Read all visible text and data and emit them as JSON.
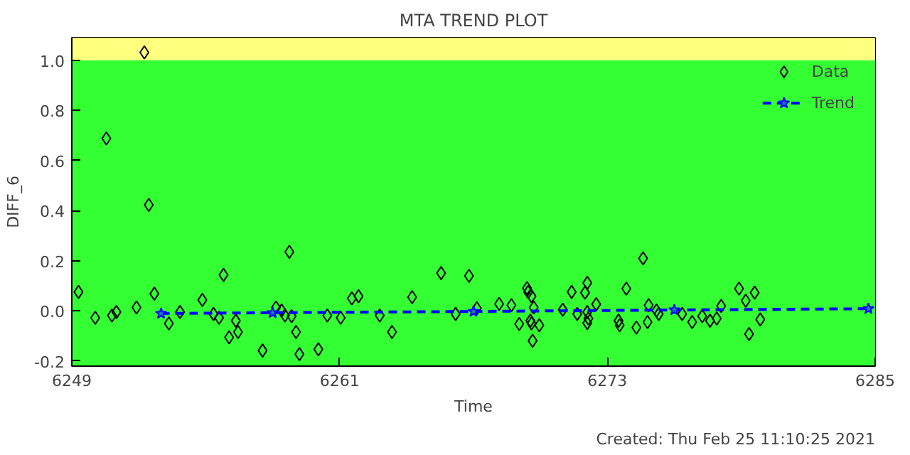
{
  "chart_data": {
    "type": "scatter",
    "title": "MTA TREND PLOT",
    "xlabel": "Time",
    "ylabel": "DIFF_6",
    "annotations": [
      "Created: Thu Feb 25 11:10:25 2021"
    ],
    "xlim": [
      6249,
      6285
    ],
    "xticks": [
      6249,
      6261,
      6273,
      6285
    ],
    "ylim": [
      -0.22,
      1.09
    ],
    "yticks": [
      {
        "value": -0.2,
        "label": "-0.2"
      },
      {
        "value": 0,
        "label": "0.0"
      },
      {
        "value": 0.2,
        "label": "0.2"
      },
      {
        "value": 0.4,
        "label": "0.4"
      },
      {
        "value": 0.6,
        "label": "0.6"
      },
      {
        "value": 0.8,
        "label": "0.8"
      },
      {
        "value": 1,
        "label": "1.0"
      }
    ],
    "grid": false,
    "legend": "top right",
    "bands": [
      {
        "axis": "y",
        "from": -0.22,
        "to": 1.0,
        "color": "#33ff33"
      },
      {
        "axis": "y",
        "from": 1.0,
        "to": 1.09,
        "color": "#ffff80"
      }
    ],
    "series": [
      {
        "name": "Data",
        "marker": "diamond",
        "color": "#000000",
        "x": [
          6249.3,
          6250.05,
          6250.55,
          6250.8,
          6251.0,
          6251.9,
          6252.25,
          6252.45,
          6252.7,
          6253.35,
          6253.85,
          6254.85,
          6255.35,
          6255.6,
          6255.8,
          6256.05,
          6256.35,
          6256.45,
          6257.55,
          6258.15,
          6258.4,
          6258.55,
          6258.85,
          6258.75,
          6259.05,
          6259.2,
          6260.05,
          6260.45,
          6261.05,
          6261.55,
          6261.85,
          6262.8,
          6263.35,
          6264.25,
          6265.55,
          6266.2,
          6266.8,
          6267.15,
          6268.15,
          6268.7,
          6269.05,
          6269.4,
          6269.45,
          6269.6,
          6269.7,
          6269.55,
          6269.6,
          6269.95,
          6269.65,
          6271.0,
          6271.4,
          6272.0,
          6272.1,
          6271.65,
          6272.1,
          6272.15,
          6272.1,
          6272.5,
          6273.5,
          6273.55,
          6273.85,
          6274.3,
          6274.6,
          6274.85,
          6274.8,
          6275.2,
          6275.3,
          6276.35,
          6276.8,
          6277.25,
          6277.6,
          6277.9,
          6278.1,
          6278.9,
          6279.2,
          6279.6,
          6279.85,
          6279.35
        ],
        "values": [
          0.076,
          -0.027,
          0.688,
          -0.018,
          -0.004,
          0.014,
          1.031,
          0.423,
          0.069,
          -0.05,
          -0.004,
          0.044,
          -0.012,
          -0.027,
          0.144,
          -0.105,
          -0.039,
          -0.084,
          -0.158,
          0.014,
          0.002,
          -0.018,
          -0.021,
          0.236,
          -0.084,
          -0.172,
          -0.153,
          -0.018,
          -0.027,
          0.05,
          0.059,
          -0.018,
          -0.084,
          0.055,
          0.151,
          -0.012,
          0.14,
          0.011,
          0.028,
          0.023,
          -0.052,
          0.091,
          0.076,
          0.059,
          0.014,
          -0.039,
          -0.05,
          -0.057,
          -0.119,
          0.005,
          0.076,
          0.073,
          0.112,
          -0.012,
          -0.004,
          -0.03,
          -0.048,
          0.027,
          -0.039,
          -0.057,
          0.089,
          -0.066,
          0.21,
          0.023,
          -0.044,
          0.002,
          -0.012,
          -0.012,
          -0.044,
          -0.021,
          -0.039,
          -0.03,
          0.02,
          0.089,
          0.041,
          0.073,
          -0.034,
          -0.092
        ]
      },
      {
        "name": "Trend",
        "type": "line",
        "marker": "star",
        "line_style": "dashed",
        "color": "#0000ff",
        "x": [
          6253,
          6258,
          6267,
          6276,
          6284.7
        ],
        "values": [
          -0.01,
          -0.007,
          -0.002,
          0.004,
          0.009
        ]
      }
    ]
  }
}
